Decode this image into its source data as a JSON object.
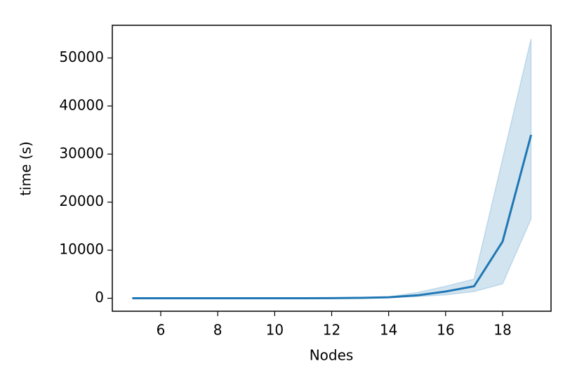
{
  "chart_data": {
    "type": "line",
    "x_label": "Nodes",
    "y_label": "time (s)",
    "x": [
      5,
      6,
      7,
      8,
      9,
      10,
      11,
      12,
      13,
      14,
      15,
      16,
      17,
      18,
      19
    ],
    "series": [
      {
        "color": "#1f77b4",
        "values": [
          0,
          0,
          0,
          0,
          0,
          0,
          10,
          30,
          80,
          200,
          600,
          1400,
          2500,
          11800,
          34000
        ],
        "lower": [
          0,
          0,
          0,
          0,
          0,
          0,
          5,
          15,
          50,
          120,
          350,
          700,
          1400,
          3000,
          16500
        ],
        "upper": [
          0,
          0,
          0,
          0,
          0,
          0,
          20,
          50,
          120,
          300,
          1200,
          2500,
          4000,
          29000,
          54000
        ]
      }
    ],
    "xlim": [
      4.3,
      19.7
    ],
    "ylim": [
      -2700,
      56800
    ],
    "xticks": [
      6,
      8,
      10,
      12,
      14,
      16,
      18
    ],
    "yticks": [
      0,
      10000,
      20000,
      30000,
      40000,
      50000
    ]
  }
}
